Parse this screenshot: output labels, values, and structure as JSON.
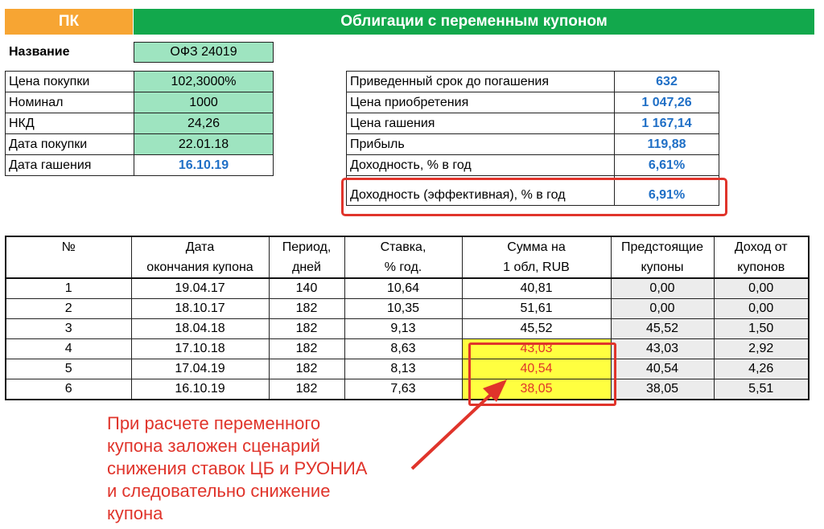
{
  "header": {
    "left": "ПК",
    "title": "Облигации с переменным купоном"
  },
  "name": {
    "label": "Название",
    "value": "ОФЗ 24019"
  },
  "params": [
    {
      "label": "Цена покупки",
      "value": "102,3000%"
    },
    {
      "label": "Номинал",
      "value": "1000"
    },
    {
      "label": "НКД",
      "value": "24,26"
    },
    {
      "label": "Дата покупки",
      "value": "22.01.18"
    },
    {
      "label": "Дата гашения",
      "value": "16.10.19"
    }
  ],
  "results": [
    {
      "label": "Приведенный срок до погашения",
      "value": "632"
    },
    {
      "label": "Цена приобретения",
      "value": "1 047,26"
    },
    {
      "label": "Цена гашения",
      "value": "1 167,14"
    },
    {
      "label": "Прибыль",
      "value": "119,88"
    },
    {
      "label": "Доходность, % в год",
      "value": "6,61%"
    },
    {
      "label": "Доходность (эффективная), % в год",
      "value": "6,91%"
    }
  ],
  "coupons": {
    "headers_top": [
      "№",
      "Дата",
      "Период,",
      "Ставка,",
      "Сумма на",
      "Предстоящие",
      "Доход от"
    ],
    "headers_bottom": [
      "",
      "окончания купона",
      "дней",
      "% год.",
      "1 обл, RUB",
      "купоны",
      "купонов"
    ],
    "rows": [
      [
        "1",
        "19.04.17",
        "140",
        "10,64",
        "40,81",
        "0,00",
        "0,00"
      ],
      [
        "2",
        "18.10.17",
        "182",
        "10,35",
        "51,61",
        "0,00",
        "0,00"
      ],
      [
        "3",
        "18.04.18",
        "182",
        "9,13",
        "45,52",
        "45,52",
        "1,50"
      ],
      [
        "4",
        "17.10.18",
        "182",
        "8,63",
        "43,03",
        "43,03",
        "2,92"
      ],
      [
        "5",
        "17.04.19",
        "182",
        "8,13",
        "40,54",
        "40,54",
        "4,26"
      ],
      [
        "6",
        "16.10.19",
        "182",
        "7,63",
        "38,05",
        "38,05",
        "5,51"
      ]
    ]
  },
  "note": [
    "При расчете переменного",
    "купона заложен сценарий",
    "снижения ставок ЦБ и РУОНИА",
    "и следовательно снижение",
    "купона"
  ],
  "colors": {
    "orange": "#f7a533",
    "green": "#12a84c",
    "mint": "#9ee4c0",
    "blue": "#1f6fc6",
    "red": "#e0342b",
    "yellow": "#ffff40"
  }
}
